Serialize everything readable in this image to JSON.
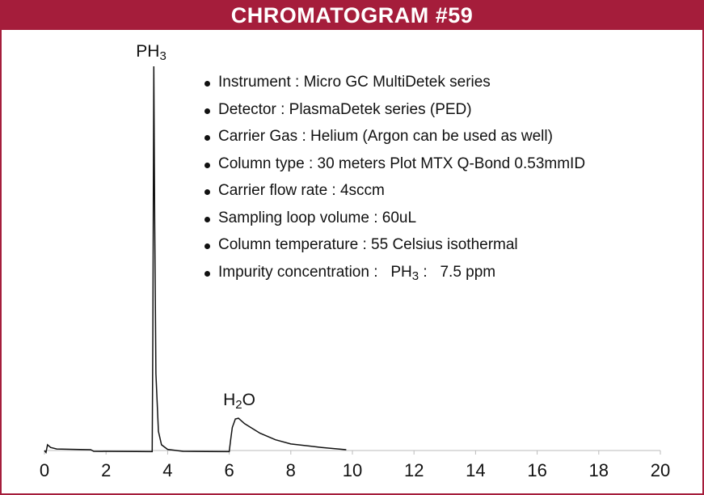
{
  "header": {
    "title": "CHROMATOGRAM #59"
  },
  "colors": {
    "brand": "#a51d3b",
    "trace": "#111111"
  },
  "info": {
    "items": [
      "Instrument : Micro GC MultiDetek series",
      "Detector : PlasmaDetek series (PED)",
      "Carrier Gas : Helium (Argon can be used as well)",
      "Column type : 30 meters Plot MTX Q-Bond 0.53mmID",
      "Carrier flow rate : 4sccm",
      "Sampling loop volume : 60uL",
      "Column temperature : 55 Celsius isothermal"
    ],
    "impurity": {
      "label": "Impurity concentration :",
      "compound": "PH",
      "compound_sub": "3",
      "sep": ":",
      "value": "7.5 ppm"
    }
  },
  "chart_data": {
    "type": "line",
    "title": "CHROMATOGRAM #59",
    "xlabel": "",
    "ylabel": "",
    "xlim": [
      0,
      20
    ],
    "xticks": [
      0,
      2,
      4,
      6,
      8,
      10,
      12,
      14,
      16,
      18,
      20
    ],
    "y_axis_shown": false,
    "grid": false,
    "series": [
      {
        "x": [
          0,
          0.05,
          0.1,
          0.2,
          0.4,
          1.0,
          1.5,
          1.6,
          3.5,
          3.52,
          3.55,
          3.58,
          3.62,
          3.7,
          3.8,
          4.0,
          4.5,
          6.0,
          6.05,
          6.1,
          6.2,
          6.3,
          6.5,
          7.0,
          7.5,
          8.0,
          9.0,
          9.8
        ],
        "y": [
          0,
          -0.5,
          1.5,
          0.8,
          0.4,
          0.3,
          0.2,
          -0.2,
          -0.3,
          30,
          100,
          60,
          20,
          5,
          1.5,
          0.3,
          -0.2,
          -0.3,
          3,
          6,
          8.2,
          8.4,
          7,
          4.5,
          2.8,
          1.7,
          0.8,
          0.2
        ]
      }
    ],
    "annotations": [
      {
        "text": "PH",
        "sub": "3",
        "x": 3.55
      },
      {
        "text": "H",
        "sub": "2",
        "tail": "O",
        "x": 6.25
      }
    ]
  }
}
